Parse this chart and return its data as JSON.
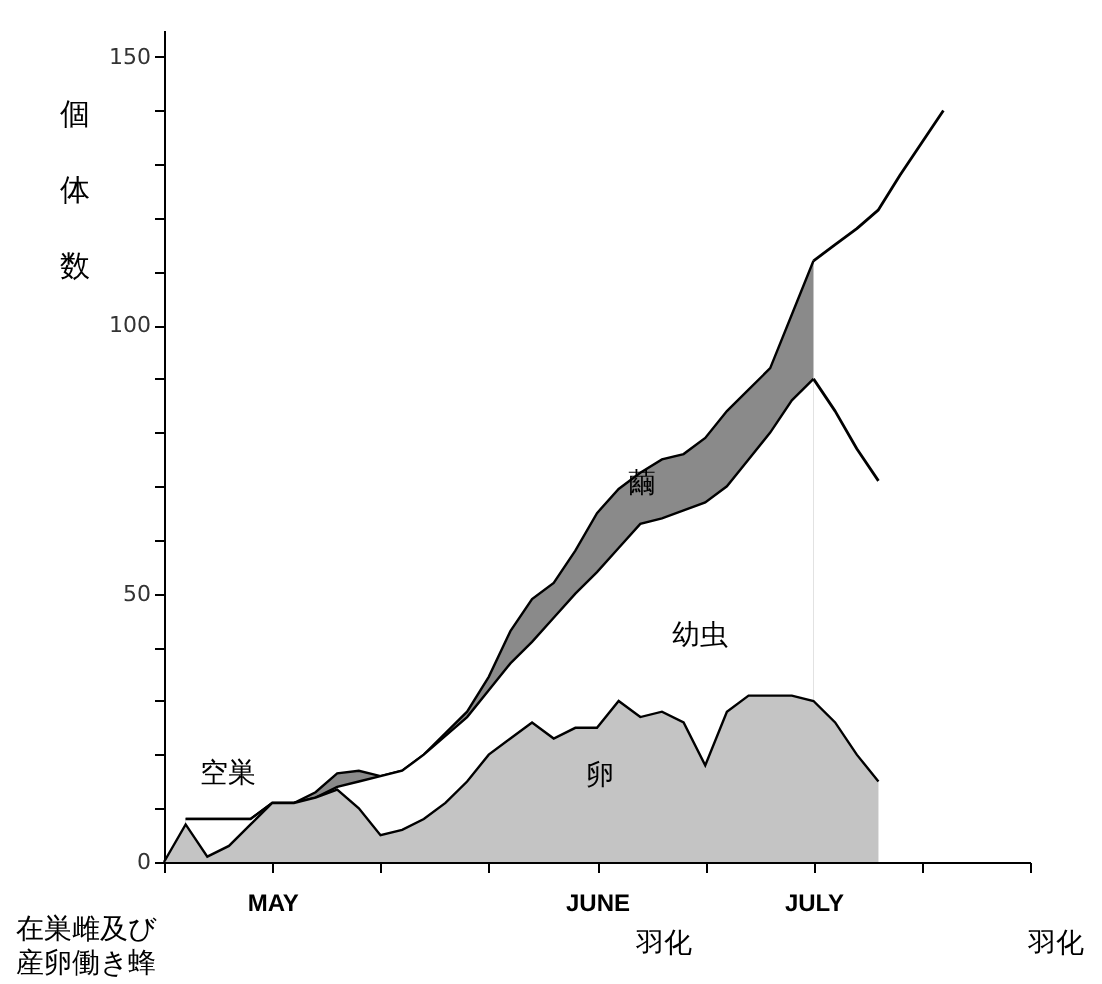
{
  "chart_data": {
    "type": "area",
    "ylabel": "個体数",
    "categories": [
      null,
      null,
      null,
      null,
      null,
      "MAY",
      null,
      null,
      null,
      null,
      null,
      null,
      null,
      null,
      null,
      null,
      null,
      null,
      null,
      null,
      "JUNE",
      null,
      null,
      null,
      null,
      null,
      null,
      null,
      null,
      null,
      "JULY",
      null,
      null,
      null,
      null,
      null,
      null,
      null,
      null,
      null,
      null
    ],
    "ylim": [
      0,
      155
    ],
    "yticks": [
      0,
      {
        "value": 10,
        "label": null
      },
      {
        "value": 20,
        "label": null
      },
      {
        "value": 30,
        "label": null
      },
      {
        "value": 40,
        "label": null
      },
      50,
      {
        "value": 60,
        "label": null
      },
      {
        "value": 70,
        "label": null
      },
      {
        "value": 80,
        "label": null
      },
      {
        "value": 90,
        "label": null
      },
      100,
      {
        "value": 110,
        "label": null
      },
      {
        "value": 120,
        "label": null
      },
      {
        "value": 130,
        "label": null
      },
      {
        "value": 140,
        "label": null
      },
      150
    ],
    "series": [
      {
        "color": "#8a8a8a",
        "values": [
          null,
          8,
          8,
          8,
          8,
          11,
          11,
          13,
          16.5,
          17,
          16,
          17,
          20,
          24,
          28,
          34.5,
          43,
          49,
          52,
          58,
          65,
          69.5,
          72.5,
          75,
          76,
          79,
          84,
          88,
          92,
          102,
          112,
          null,
          null,
          null,
          null,
          null,
          null,
          null,
          null,
          null,
          null
        ]
      },
      {
        "color": "#ffffff",
        "values": [
          null,
          8,
          8,
          8,
          8,
          11,
          11,
          12,
          14,
          15,
          16,
          17,
          20,
          23.5,
          27,
          32,
          37,
          41,
          45.5,
          50,
          54,
          58.5,
          63,
          64,
          65.5,
          67,
          70,
          75,
          80,
          86,
          90,
          null,
          null,
          null,
          null,
          null,
          null,
          null,
          null,
          null,
          null
        ]
      },
      {
        "color": "#c4c4c4",
        "values": [
          0,
          7,
          1,
          3,
          7,
          11,
          11,
          12,
          13.5,
          10,
          5,
          6,
          8,
          11,
          15,
          20,
          23,
          26,
          23,
          25,
          25,
          30,
          27,
          28,
          26,
          18,
          28,
          31,
          31,
          31,
          30,
          26,
          20,
          15,
          null,
          null,
          null,
          null,
          null,
          null,
          null
        ]
      },
      {
        "type": "line",
        "color": "#000000",
        "values": [
          null,
          null,
          null,
          null,
          null,
          null,
          null,
          null,
          null,
          null,
          null,
          null,
          null,
          null,
          null,
          null,
          null,
          null,
          null,
          null,
          null,
          null,
          null,
          null,
          null,
          null,
          null,
          null,
          null,
          null,
          112,
          115,
          118,
          121.5,
          128,
          134,
          140,
          null,
          null,
          null,
          null
        ]
      },
      {
        "type": "line",
        "color": "#000000",
        "values": [
          null,
          null,
          null,
          null,
          null,
          null,
          null,
          null,
          null,
          null,
          null,
          null,
          null,
          null,
          null,
          null,
          null,
          null,
          null,
          null,
          null,
          null,
          null,
          null,
          null,
          null,
          null,
          null,
          null,
          null,
          90,
          84,
          77,
          71,
          null,
          null,
          null,
          null,
          null,
          null,
          null
        ]
      }
    ],
    "annotations": [
      "空巣",
      "卵",
      "幼虫",
      "繭",
      "在巣雌及び産卵働き蜂",
      "羽化",
      "羽化"
    ]
  }
}
